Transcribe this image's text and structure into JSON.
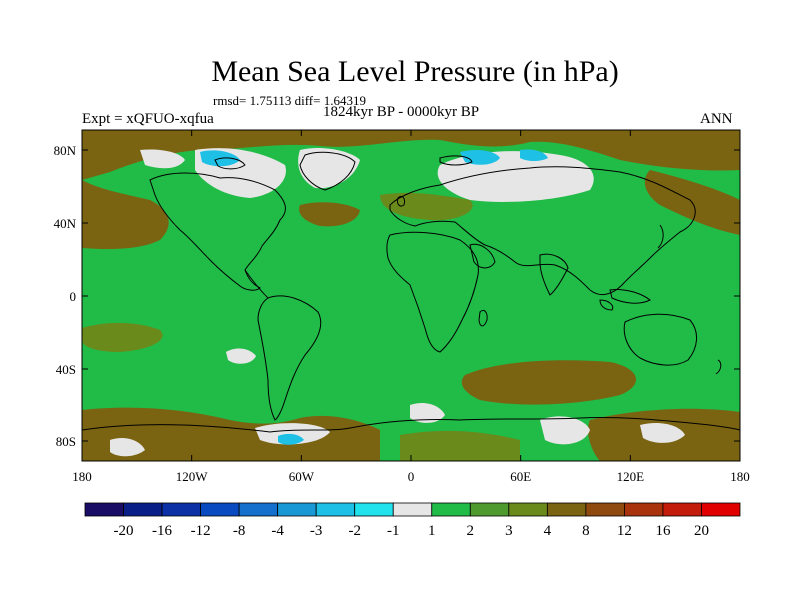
{
  "title": "Mean Sea Level Pressure (in hPa)",
  "stats": "rmsd= 1.75113 diff= 1.64319",
  "period": "1824kyr BP - 0000kyr BP",
  "experiment": "Expt = xQFUO-xqfua",
  "season": "ANN",
  "lat_ticks": [
    "80N",
    "40N",
    "0",
    "40S",
    "80S"
  ],
  "lon_ticks": [
    "180",
    "120W",
    "60W",
    "0",
    "60E",
    "120E",
    "180"
  ],
  "colorbar": {
    "labels": [
      "-20",
      "-16",
      "-12",
      "-8",
      "-4",
      "-3",
      "-2",
      "-1",
      "1",
      "2",
      "3",
      "4",
      "8",
      "12",
      "16",
      "20"
    ],
    "colors": [
      "#1a0d66",
      "#0a1e87",
      "#0b2fa5",
      "#0a4ac0",
      "#1470cc",
      "#1998d6",
      "#1ec0e6",
      "#21e3ee",
      "#e6e6e6",
      "#21bb48",
      "#4f9a2e",
      "#6a8a1c",
      "#7a6412",
      "#8f4a10",
      "#a8330c",
      "#c41c0a",
      "#e00000"
    ]
  },
  "palette": {
    "green": "#21bb48",
    "white": "#e6e6e6",
    "brown": "#7a6412",
    "olive": "#6a8a1c",
    "cyan": "#1ec0e6",
    "coast": "#000000"
  }
}
